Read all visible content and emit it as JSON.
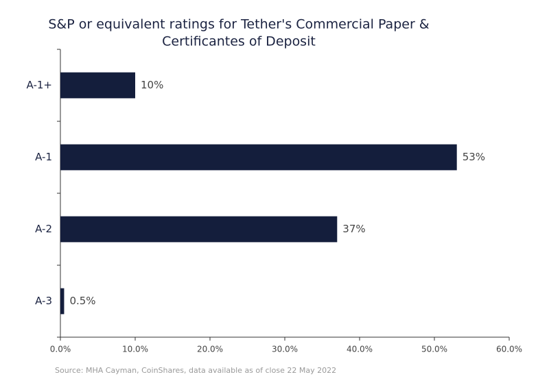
{
  "chart_data": {
    "type": "bar",
    "orientation": "horizontal",
    "title": [
      "S&P or equivalent ratings for Tether's Commercial Paper &",
      "Certificantes of Deposit"
    ],
    "categories": [
      "A-1+",
      "A-1",
      "A-2",
      "A-3"
    ],
    "values": [
      10,
      53,
      37,
      0.5
    ],
    "value_labels": [
      "10%",
      "53%",
      "37%",
      "0.5%"
    ],
    "color": "#141e3c",
    "xlim": [
      0,
      60
    ],
    "xticks": [
      {
        "value": 0,
        "label": "0.0%"
      },
      {
        "value": 10,
        "label": "10.0%"
      },
      {
        "value": 20,
        "label": "20.0%"
      },
      {
        "value": 30,
        "label": "30.0%"
      },
      {
        "value": 40,
        "label": "40.0%"
      },
      {
        "value": 50,
        "label": "50.0%"
      },
      {
        "value": 60,
        "label": "60.0%"
      }
    ],
    "source": "Source: MHA Cayman, CoinShares, data available as of close 22 May 2022"
  }
}
